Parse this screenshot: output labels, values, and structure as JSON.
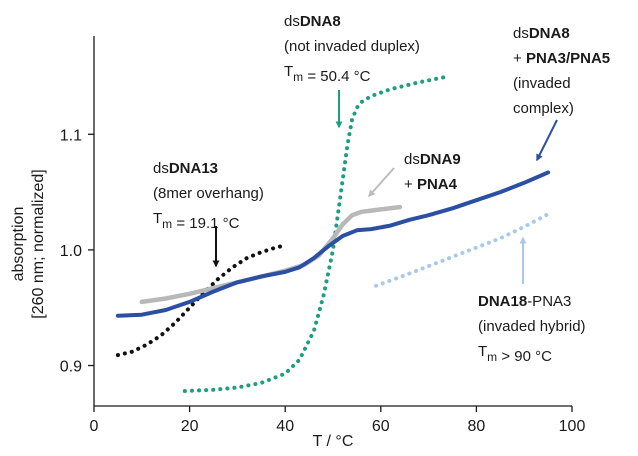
{
  "chart_data": {
    "type": "line",
    "xlabel": "T / °C",
    "ylabel_line1": "absorption",
    "ylabel_line2": "[260 nm; normalized]",
    "xlim": [
      0,
      100
    ],
    "ylim": [
      0.865,
      1.185
    ],
    "x_ticks": [
      0,
      20,
      40,
      60,
      80,
      100
    ],
    "y_ticks": [
      0.9,
      1.0,
      1.1
    ],
    "x_tick_labels": [
      "0",
      "20",
      "40",
      "60",
      "80",
      "100"
    ],
    "y_tick_labels": [
      "0.9",
      "1.0",
      "1.1"
    ],
    "grid": false,
    "series": [
      {
        "key": "dsDNA13",
        "style": "dotted",
        "color": "#111111",
        "x": [
          5,
          8,
          11,
          14,
          17,
          20,
          23,
          26,
          29,
          32,
          35,
          38,
          40
        ],
        "y": [
          0.909,
          0.912,
          0.918,
          0.926,
          0.937,
          0.95,
          0.963,
          0.975,
          0.985,
          0.993,
          0.998,
          1.002,
          1.004
        ]
      },
      {
        "key": "dsDNA8",
        "style": "dotted",
        "color": "#1f9e7f",
        "x": [
          19,
          25,
          30,
          35,
          40,
          43,
          46,
          48,
          50,
          51,
          52,
          53,
          54,
          55,
          56,
          58,
          62,
          68,
          74
        ],
        "y": [
          0.878,
          0.879,
          0.881,
          0.885,
          0.893,
          0.905,
          0.93,
          0.96,
          1.0,
          1.03,
          1.06,
          1.09,
          1.113,
          1.123,
          1.128,
          1.133,
          1.139,
          1.145,
          1.15
        ]
      },
      {
        "key": "dsDNA9+PNA4",
        "style": "solid",
        "color": "#b8b8b8",
        "x": [
          10,
          15,
          20,
          25,
          30,
          35,
          40,
          44,
          47,
          50,
          52,
          54,
          56,
          58,
          60,
          64
        ],
        "y": [
          0.955,
          0.958,
          0.962,
          0.967,
          0.972,
          0.977,
          0.982,
          0.987,
          0.995,
          1.01,
          1.022,
          1.03,
          1.033,
          1.034,
          1.035,
          1.037
        ]
      },
      {
        "key": "dsDNA8+PNA3/PNA5",
        "style": "solid",
        "color": "#2a4fa3",
        "x": [
          5,
          10,
          15,
          20,
          25,
          30,
          35,
          40,
          43,
          46,
          49,
          52,
          55,
          58,
          62,
          66,
          70,
          75,
          80,
          85,
          90,
          95
        ],
        "y": [
          0.943,
          0.944,
          0.948,
          0.955,
          0.964,
          0.972,
          0.977,
          0.981,
          0.985,
          0.993,
          1.003,
          1.012,
          1.017,
          1.018,
          1.021,
          1.026,
          1.03,
          1.036,
          1.043,
          1.05,
          1.058,
          1.067
        ]
      },
      {
        "key": "DNA18-PNA3",
        "style": "dotted",
        "color": "#a9c9e8",
        "x": [
          59,
          65,
          70,
          75,
          80,
          85,
          90,
          95
        ],
        "y": [
          0.969,
          0.978,
          0.986,
          0.994,
          1.002,
          1.01,
          1.02,
          1.031
        ]
      }
    ],
    "annotations": [
      {
        "key": "dsDNA13",
        "color": "#111111",
        "lines": [
          {
            "prefix": "ds",
            "bold": "DNA13",
            "suffix": ""
          },
          {
            "prefix": "(8mer overhang)",
            "bold": "",
            "suffix": ""
          },
          {
            "prefix": "T",
            "sub": "m",
            "suffix": " =  19.1 °C"
          }
        ]
      },
      {
        "key": "dsDNA8",
        "color": "#1f9e7f",
        "lines": [
          {
            "prefix": "ds",
            "bold": "DNA8",
            "suffix": ""
          },
          {
            "prefix": "(not invaded duplex)",
            "bold": "",
            "suffix": ""
          },
          {
            "prefix": "T",
            "sub": "m",
            "suffix": " =  50.4 °C"
          }
        ]
      },
      {
        "key": "dsDNA9+PNA4",
        "color": "#b8b8b8",
        "lines": [
          {
            "prefix": "ds",
            "bold": "DNA9",
            "suffix": ""
          },
          {
            "prefix": "+ ",
            "bold": "PNA4",
            "suffix": ""
          }
        ]
      },
      {
        "key": "dsDNA8+PNA3/PNA5",
        "color": "#2a4fa3",
        "lines": [
          {
            "prefix": "ds",
            "bold": "DNA8",
            "suffix": ""
          },
          {
            "prefix": "+ ",
            "bold": "PNA3/PNA5",
            "suffix": ""
          },
          {
            "prefix": "(invaded",
            "bold": "",
            "suffix": ""
          },
          {
            "prefix": "complex)",
            "bold": "",
            "suffix": ""
          }
        ]
      },
      {
        "key": "DNA18-PNA3",
        "color": "#a9c9e8",
        "lines": [
          {
            "prefix": "",
            "bold": "DNA18",
            "suffix": "-PNA3"
          },
          {
            "prefix": "(invaded hybrid)",
            "bold": "",
            "suffix": ""
          },
          {
            "prefix": "T",
            "sub": "m",
            "suffix": " > 90 °C"
          }
        ]
      }
    ]
  }
}
